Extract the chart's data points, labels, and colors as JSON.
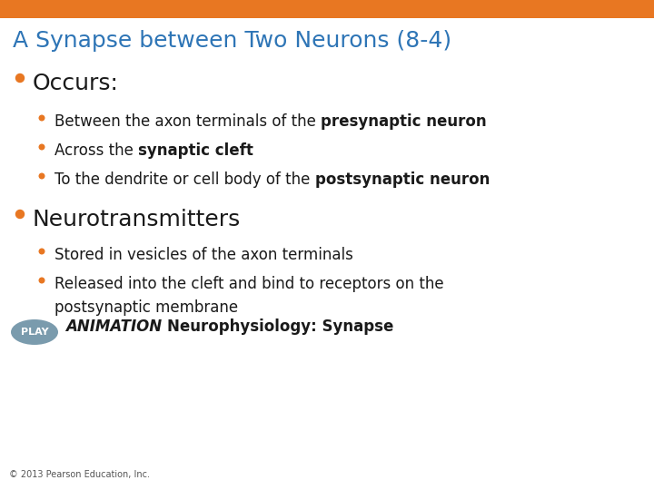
{
  "title": "A Synapse between Two Neurons (8-4)",
  "title_color": "#2E75B6",
  "title_fontsize": 18,
  "bg_color": "#FFFFFF",
  "top_bar_color": "#E87722",
  "bullet_color": "#E87722",
  "text_color": "#1A1A1A",
  "main_bullet1": "Occurs:",
  "main_bullet1_size": 18,
  "main_bullet2": "Neurotransmitters",
  "main_bullet2_size": 18,
  "sub_bullet_fontsize": 12,
  "play_button_color": "#7A9BAD",
  "play_text": "PLAY",
  "animation_italic": "ANIMATION ",
  "animation_bold": "Neurophysiology: Synapse",
  "animation_fontsize": 12,
  "footer": "© 2013 Pearson Education, Inc.",
  "footer_fontsize": 7
}
